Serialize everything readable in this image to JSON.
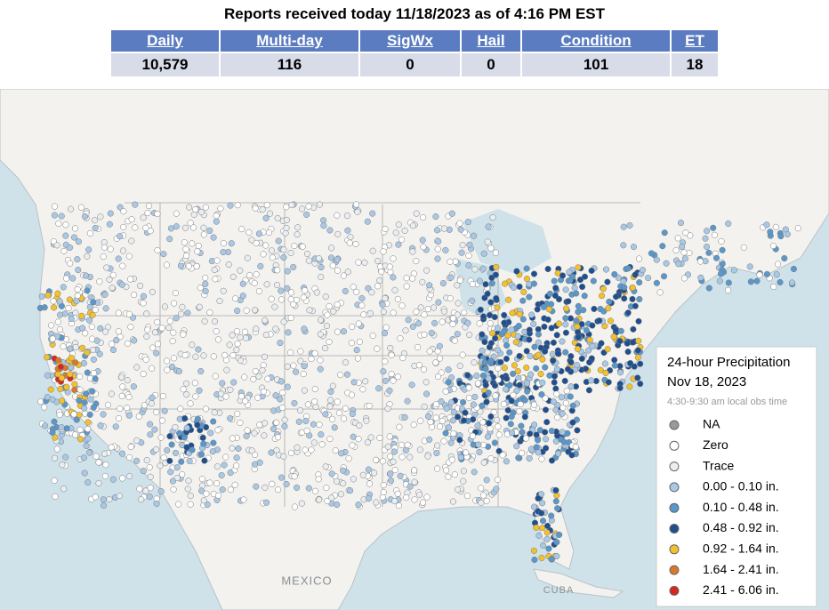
{
  "header": {
    "title": "Reports received today 11/18/2023 as of 4:16 PM EST"
  },
  "table": {
    "headers": [
      "Daily",
      "Multi-day",
      "SigWx",
      "Hail",
      "Condition",
      "ET"
    ],
    "rows": [
      [
        "10,579",
        "116",
        "0",
        "0",
        "101",
        "18"
      ]
    ]
  },
  "map_labels": [
    "MEXICO",
    "CUBA"
  ],
  "legend": {
    "title": "24-hour Precipitation",
    "date": "Nov 18, 2023",
    "note": "4:30-9:30 am local obs time",
    "items": [
      {
        "label": "NA",
        "color": "#9a9a9a"
      },
      {
        "label": "Zero",
        "color": "#ffffff"
      },
      {
        "label": "Trace",
        "color": "#e9eef2"
      },
      {
        "label": "0.00 - 0.10 in.",
        "color": "#a9c8e6"
      },
      {
        "label": "0.10 - 0.48 in.",
        "color": "#5a97cb"
      },
      {
        "label": "0.48 - 0.92 in.",
        "color": "#1f4f8f"
      },
      {
        "label": "0.92 - 1.64 in.",
        "color": "#f3c12c"
      },
      {
        "label": "1.64 - 2.41 in.",
        "color": "#d9782a"
      },
      {
        "label": "2.41 - 6.06 in.",
        "color": "#d8281c"
      }
    ]
  }
}
